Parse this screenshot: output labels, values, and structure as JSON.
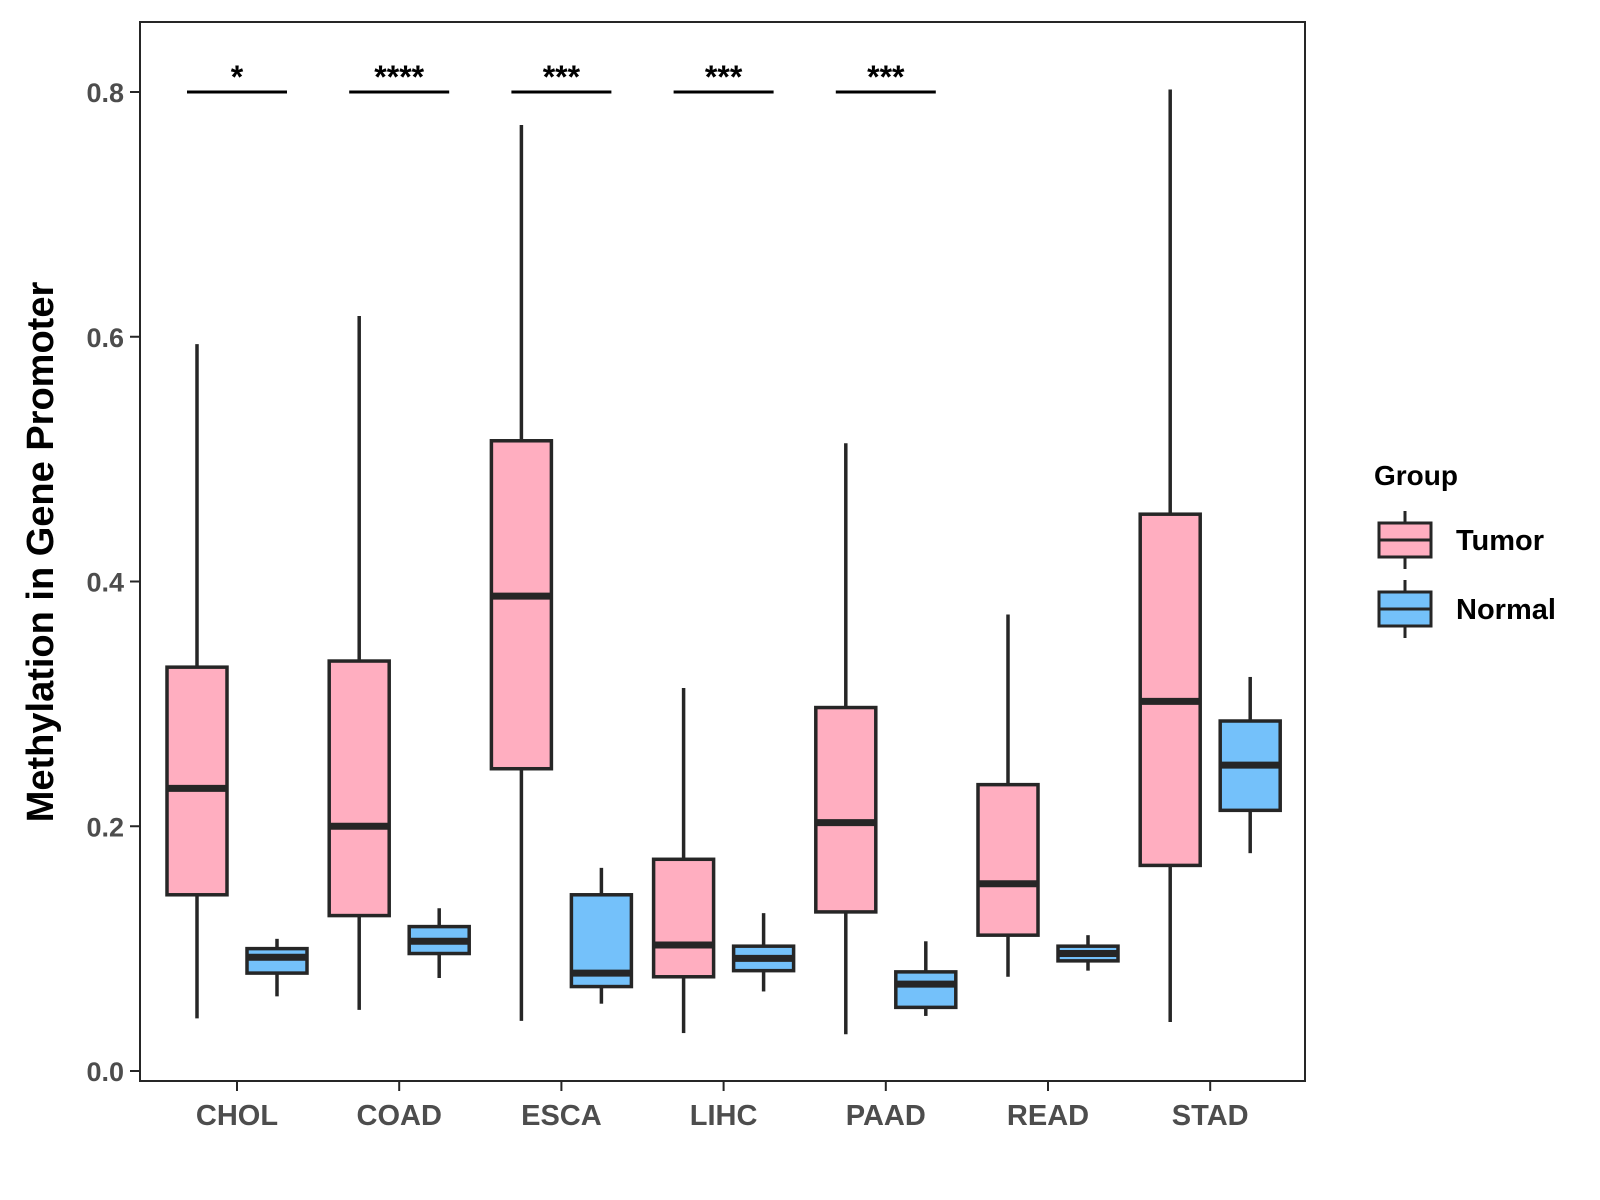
{
  "chart_data": {
    "type": "boxplot",
    "title": "",
    "xlabel": "",
    "ylabel": "Methylation in Gene Promoter",
    "ylim": [
      -0.01,
      0.86
    ],
    "yticks": [
      0.0,
      0.2,
      0.4,
      0.6,
      0.8
    ],
    "ytick_labels": [
      "0.0",
      "0.2",
      "0.4",
      "0.6",
      "0.8"
    ],
    "categories": [
      "CHOL",
      "COAD",
      "ESCA",
      "LIHC",
      "PAAD",
      "READ",
      "STAD"
    ],
    "legend": {
      "title": "Group",
      "position": "right",
      "entries": [
        {
          "name": "Tumor",
          "color": "#FFAEC0"
        },
        {
          "name": "Normal",
          "color": "#74C1FA"
        }
      ]
    },
    "series": [
      {
        "name": "Tumor",
        "color": "#FFAEC0",
        "boxes": [
          {
            "category": "CHOL",
            "min": 0.043,
            "q1": 0.144,
            "median": 0.231,
            "q3": 0.33,
            "max": 0.594
          },
          {
            "category": "COAD",
            "min": 0.05,
            "q1": 0.127,
            "median": 0.2,
            "q3": 0.335,
            "max": 0.617
          },
          {
            "category": "ESCA",
            "min": 0.041,
            "q1": 0.247,
            "median": 0.388,
            "q3": 0.515,
            "max": 0.773
          },
          {
            "category": "LIHC",
            "min": 0.031,
            "q1": 0.077,
            "median": 0.103,
            "q3": 0.173,
            "max": 0.313
          },
          {
            "category": "PAAD",
            "min": 0.03,
            "q1": 0.13,
            "median": 0.203,
            "q3": 0.297,
            "max": 0.513
          },
          {
            "category": "READ",
            "min": 0.077,
            "q1": 0.111,
            "median": 0.153,
            "q3": 0.234,
            "max": 0.373
          },
          {
            "category": "STAD",
            "min": 0.04,
            "q1": 0.168,
            "median": 0.302,
            "q3": 0.455,
            "max": 0.802
          }
        ]
      },
      {
        "name": "Normal",
        "color": "#74C1FA",
        "boxes": [
          {
            "category": "CHOL",
            "min": 0.061,
            "q1": 0.08,
            "median": 0.093,
            "q3": 0.1,
            "max": 0.108
          },
          {
            "category": "COAD",
            "min": 0.076,
            "q1": 0.096,
            "median": 0.106,
            "q3": 0.118,
            "max": 0.133
          },
          {
            "category": "ESCA",
            "min": 0.055,
            "q1": 0.069,
            "median": 0.08,
            "q3": 0.144,
            "max": 0.166
          },
          {
            "category": "LIHC",
            "min": 0.065,
            "q1": 0.082,
            "median": 0.092,
            "q3": 0.102,
            "max": 0.129
          },
          {
            "category": "PAAD",
            "min": 0.045,
            "q1": 0.052,
            "median": 0.071,
            "q3": 0.081,
            "max": 0.106
          },
          {
            "category": "READ",
            "min": 0.082,
            "q1": 0.09,
            "median": 0.096,
            "q3": 0.102,
            "max": 0.111
          },
          {
            "category": "STAD",
            "min": 0.178,
            "q1": 0.213,
            "median": 0.25,
            "q3": 0.286,
            "max": 0.322
          }
        ]
      }
    ],
    "significance": [
      {
        "category": "CHOL",
        "label": "*",
        "y": 0.8
      },
      {
        "category": "COAD",
        "label": "****",
        "y": 0.8
      },
      {
        "category": "ESCA",
        "label": "***",
        "y": 0.8
      },
      {
        "category": "LIHC",
        "label": "***",
        "y": 0.8
      },
      {
        "category": "PAAD",
        "label": "***",
        "y": 0.8
      }
    ]
  }
}
